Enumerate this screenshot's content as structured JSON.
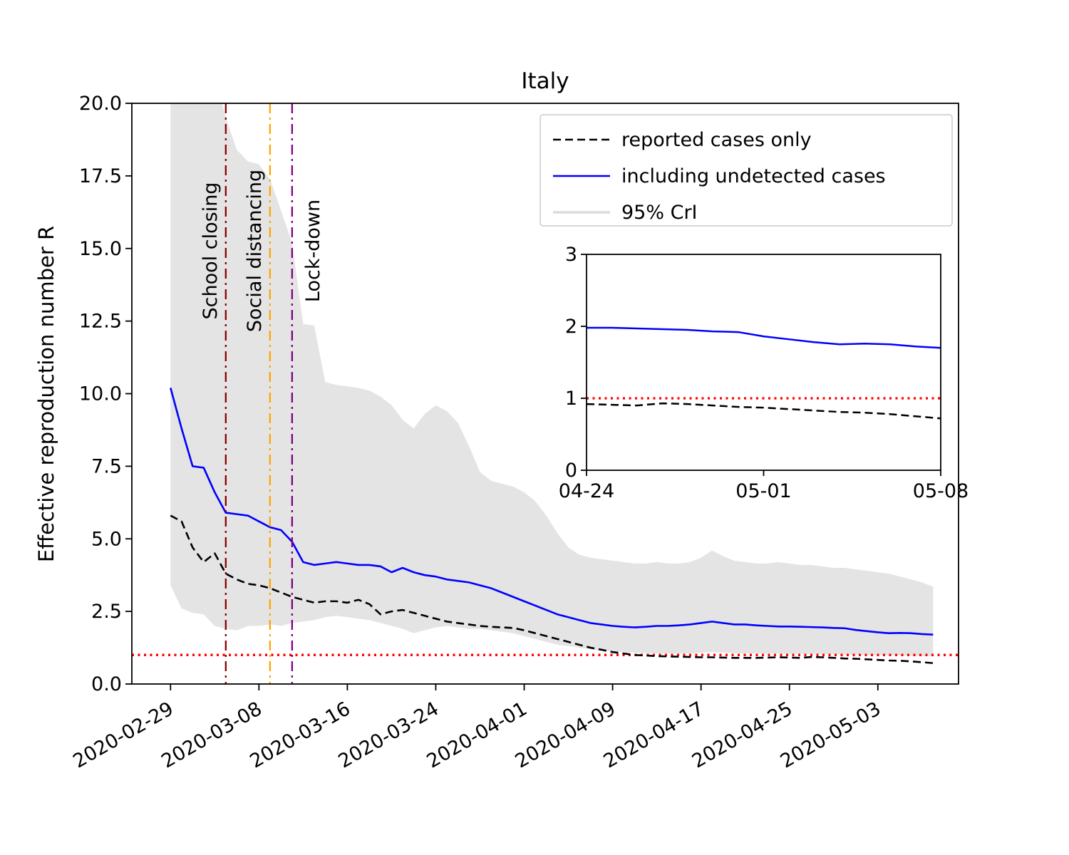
{
  "chart_data": {
    "type": "line",
    "title": "Italy",
    "ylabel": "Effective reproduction number R",
    "xlabel": "",
    "x_axis": {
      "range_days": [
        -3.5,
        71.3
      ],
      "tick_days": [
        0,
        8,
        16,
        24,
        32,
        40,
        48,
        56,
        64
      ],
      "tick_labels": [
        "2020-02-29",
        "2020-03-08",
        "2020-03-16",
        "2020-03-24",
        "2020-04-01",
        "2020-04-09",
        "2020-04-17",
        "2020-04-25",
        "2020-05-03"
      ]
    },
    "y_axis": {
      "range": [
        0,
        20
      ],
      "ticks": [
        0,
        2.5,
        5,
        7.5,
        10,
        12.5,
        15,
        17.5,
        20
      ],
      "tick_labels": [
        "0.0",
        "2.5",
        "5.0",
        "7.5",
        "10.0",
        "12.5",
        "15.0",
        "17.5",
        "20.0"
      ]
    },
    "dates": [
      "2020-02-29",
      "2020-03-01",
      "2020-03-02",
      "2020-03-03",
      "2020-03-04",
      "2020-03-05",
      "2020-03-06",
      "2020-03-07",
      "2020-03-08",
      "2020-03-09",
      "2020-03-10",
      "2020-03-11",
      "2020-03-12",
      "2020-03-13",
      "2020-03-14",
      "2020-03-15",
      "2020-03-16",
      "2020-03-17",
      "2020-03-18",
      "2020-03-19",
      "2020-03-20",
      "2020-03-21",
      "2020-03-22",
      "2020-03-23",
      "2020-03-24",
      "2020-03-25",
      "2020-03-26",
      "2020-03-27",
      "2020-03-28",
      "2020-03-29",
      "2020-03-30",
      "2020-03-31",
      "2020-04-01",
      "2020-04-02",
      "2020-04-03",
      "2020-04-04",
      "2020-04-05",
      "2020-04-06",
      "2020-04-07",
      "2020-04-08",
      "2020-04-09",
      "2020-04-10",
      "2020-04-11",
      "2020-04-12",
      "2020-04-13",
      "2020-04-14",
      "2020-04-15",
      "2020-04-16",
      "2020-04-17",
      "2020-04-18",
      "2020-04-19",
      "2020-04-20",
      "2020-04-21",
      "2020-04-22",
      "2020-04-23",
      "2020-04-24",
      "2020-04-25",
      "2020-04-26",
      "2020-04-27",
      "2020-04-28",
      "2020-04-29",
      "2020-04-30",
      "2020-05-01",
      "2020-05-02",
      "2020-05-03",
      "2020-05-04",
      "2020-05-05",
      "2020-05-06",
      "2020-05-07",
      "2020-05-08"
    ],
    "series": [
      {
        "name": "reported cases only",
        "color": "#000000",
        "line_style": "dashed",
        "values": [
          5.8,
          5.6,
          4.7,
          4.2,
          4.5,
          3.8,
          3.6,
          3.45,
          3.4,
          3.3,
          3.15,
          3.0,
          2.9,
          2.8,
          2.85,
          2.85,
          2.8,
          2.9,
          2.75,
          2.4,
          2.5,
          2.55,
          2.45,
          2.35,
          2.25,
          2.15,
          2.1,
          2.05,
          2.0,
          1.97,
          1.95,
          1.93,
          1.85,
          1.75,
          1.65,
          1.55,
          1.45,
          1.35,
          1.25,
          1.18,
          1.1,
          1.05,
          1.0,
          0.98,
          0.96,
          0.95,
          0.94,
          0.93,
          0.92,
          0.92,
          0.91,
          0.9,
          0.9,
          0.9,
          0.91,
          0.92,
          0.91,
          0.9,
          0.93,
          0.92,
          0.9,
          0.88,
          0.87,
          0.85,
          0.83,
          0.81,
          0.8,
          0.78,
          0.75,
          0.72
        ]
      },
      {
        "name": "including undetected cases",
        "color": "#0000ff",
        "line_style": "solid",
        "values": [
          10.2,
          8.8,
          7.5,
          7.45,
          6.6,
          5.9,
          5.85,
          5.8,
          5.6,
          5.4,
          5.3,
          4.9,
          4.2,
          4.1,
          4.15,
          4.2,
          4.15,
          4.1,
          4.1,
          4.05,
          3.85,
          4.0,
          3.85,
          3.75,
          3.7,
          3.6,
          3.55,
          3.5,
          3.4,
          3.3,
          3.15,
          3.0,
          2.85,
          2.7,
          2.55,
          2.4,
          2.3,
          2.2,
          2.1,
          2.05,
          2.0,
          1.97,
          1.95,
          1.97,
          2.0,
          2.0,
          2.02,
          2.05,
          2.1,
          2.15,
          2.1,
          2.05,
          2.05,
          2.02,
          2.0,
          1.98,
          1.98,
          1.97,
          1.96,
          1.95,
          1.93,
          1.92,
          1.86,
          1.82,
          1.78,
          1.75,
          1.76,
          1.75,
          1.72,
          1.7
        ]
      }
    ],
    "band": {
      "name": "95% CrI",
      "color": "#e4e4e4",
      "upper": [
        45,
        36,
        28,
        23,
        21,
        19.5,
        18.4,
        18.0,
        17.9,
        17.4,
        16.3,
        15.2,
        12.4,
        12.35,
        10.4,
        10.3,
        10.25,
        10.2,
        10.1,
        9.9,
        9.6,
        9.1,
        8.8,
        9.3,
        9.6,
        9.4,
        9.0,
        8.2,
        7.3,
        7.0,
        6.9,
        6.8,
        6.6,
        6.3,
        5.8,
        5.2,
        4.7,
        4.45,
        4.35,
        4.3,
        4.25,
        4.2,
        4.15,
        4.15,
        4.2,
        4.15,
        4.15,
        4.2,
        4.35,
        4.6,
        4.4,
        4.25,
        4.2,
        4.15,
        4.15,
        4.2,
        4.15,
        4.1,
        4.1,
        4.05,
        4.0,
        4.0,
        3.95,
        3.9,
        3.85,
        3.8,
        3.7,
        3.6,
        3.5,
        3.35
      ],
      "lower": [
        3.4,
        2.6,
        2.45,
        2.4,
        2.0,
        1.9,
        1.85,
        2.0,
        2.0,
        2.05,
        2.0,
        2.1,
        2.15,
        2.2,
        2.3,
        2.35,
        2.3,
        2.25,
        2.2,
        2.1,
        2.0,
        1.9,
        1.75,
        1.85,
        1.95,
        2.0,
        1.95,
        1.9,
        1.9,
        1.85,
        1.8,
        1.75,
        1.65,
        1.55,
        1.45,
        1.35,
        1.3,
        1.25,
        1.2,
        1.15,
        1.12,
        1.1,
        1.08,
        1.06,
        1.05,
        1.05,
        1.05,
        1.05,
        1.08,
        1.1,
        1.08,
        1.06,
        1.05,
        1.05,
        1.05,
        1.05,
        1.04,
        1.04,
        1.03,
        1.03,
        1.02,
        1.02,
        1.01,
        1.0,
        1.0,
        0.99,
        0.98,
        0.97,
        0.96,
        0.95
      ]
    },
    "threshold_line": {
      "value": 1.0,
      "color": "#ff0000",
      "line_style": "dotted"
    },
    "events": [
      {
        "label": "School closing",
        "date": "2020-03-05",
        "day": 5,
        "color": "#8b0000",
        "label_side": "left"
      },
      {
        "label": "Social distancing",
        "date": "2020-03-09",
        "day": 9,
        "color": "#ffa500",
        "label_side": "left"
      },
      {
        "label": "Lock-down",
        "date": "2020-03-11",
        "day": 11,
        "color": "#800080",
        "label_side": "right"
      }
    ],
    "legend": {
      "entries": [
        {
          "label": "reported cases only"
        },
        {
          "label": "including undetected cases"
        },
        {
          "label": "95% CrI"
        }
      ]
    },
    "inset": {
      "start_day": 55,
      "x_axis": {
        "range_days": [
          55,
          69
        ],
        "tick_days": [
          55,
          62,
          69
        ],
        "tick_labels": [
          "04-24",
          "05-01",
          "05-08"
        ]
      },
      "y_axis": {
        "range": [
          0,
          3
        ],
        "ticks": [
          0,
          1,
          2,
          3
        ],
        "tick_labels": [
          "0",
          "1",
          "2",
          "3"
        ]
      }
    }
  }
}
